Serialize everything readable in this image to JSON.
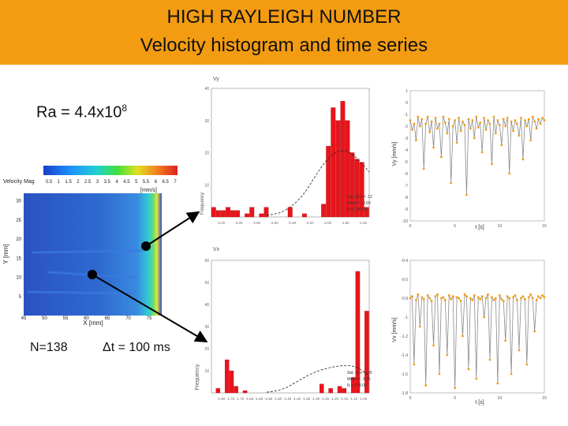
{
  "header": {
    "title_line1": "HIGH RAYLEIGH NUMBER",
    "title_line2": "Velocity histogram and time series"
  },
  "colors": {
    "banner": "#f39c12",
    "bar": "#e8141c",
    "series_marker": "#f39c12",
    "series_line": "#8a8a8a",
    "arrow": "#000000"
  },
  "labels": {
    "ra_text": "Ra = 4.4x10",
    "ra_exp": "8",
    "n_text": "N=138",
    "dt_text": "Δt = 100 ms"
  },
  "chart_data": [
    {
      "type": "heatmap",
      "name_key": "velocity-field",
      "colorbar_title": "Velocity Mag",
      "colorbar_ticks": [
        "0.5",
        "1",
        "1.5",
        "2",
        "2.5",
        "3",
        "3.5",
        "4",
        "4.5",
        "5",
        "5.5",
        "6",
        "6.5",
        "7"
      ],
      "colorbar_unit": "[mm/s]",
      "xlabel": "X [mm]",
      "ylabel": "Y [mm]",
      "xticks": [
        "45",
        "50",
        "55",
        "60",
        "65",
        "70",
        "75"
      ],
      "yticks": [
        "5",
        "10",
        "15",
        "20",
        "25",
        "30"
      ],
      "xlim": [
        45,
        78
      ],
      "ylim": [
        0,
        32
      ],
      "probes": [
        {
          "x": 73.5,
          "y": 14.2
        },
        {
          "x": 56.5,
          "y": 10.1
        }
      ]
    },
    {
      "type": "bar",
      "name_key": "histogram-vy",
      "title": "Vy",
      "ylabel": "Frequency",
      "ylim": [
        0,
        40
      ],
      "yticks": [
        "10",
        "20",
        "30",
        "40"
      ],
      "xticks": [
        "-3.20",
        "-3.00",
        "-2.80",
        "-2.60",
        "-2.40",
        "-2.20",
        "-2.00",
        "-1.80",
        "-1.60"
      ],
      "values": [
        3,
        2,
        2,
        3,
        2,
        2,
        0,
        1,
        3,
        0,
        1,
        3,
        0,
        0,
        0,
        0,
        3,
        0,
        0,
        1,
        0,
        0,
        0,
        4,
        22,
        34,
        30,
        36,
        30,
        20,
        18,
        17,
        3
      ],
      "fit_curve": [
        0.5,
        0.8,
        1.2,
        2,
        3.2,
        4.8,
        6.8,
        9.5,
        12.5,
        15.3,
        17.8,
        19.6,
        20.5,
        20.6,
        19.8,
        18.2,
        16.2,
        14
      ],
      "stats": [
        "Std. Dev = .12",
        "Mean = -3.69",
        "N = 138.00"
      ]
    },
    {
      "type": "line",
      "name_key": "timeseries-vy",
      "ylabel": "Vy [mm/s]",
      "xlabel": "t [s]",
      "xlim": [
        0,
        15
      ],
      "ylim": [
        -10,
        1
      ],
      "xticks": [
        "0",
        "5",
        "10",
        "15"
      ],
      "yticks": [
        "1",
        "0",
        "-1",
        "-2",
        "-3",
        "-4",
        "-5",
        "-6",
        "-7",
        "-8",
        "-9",
        "-10"
      ],
      "values": [
        -1.5,
        -2.3,
        -1.8,
        -3.2,
        -1.2,
        -2.0,
        -1.4,
        -5.6,
        -1.8,
        -1.2,
        -2.5,
        -1.6,
        -3.8,
        -1.3,
        -2.2,
        -1.8,
        -4.6,
        -1.2,
        -1.7,
        -2.6,
        -1.4,
        -6.8,
        -2.0,
        -1.5,
        -3.4,
        -1.3,
        -2.4,
        -1.6,
        -1.9,
        -7.8,
        -1.4,
        -2.2,
        -1.5,
        -3.0,
        -1.2,
        -2.1,
        -1.7,
        -4.2,
        -1.3,
        -2.3,
        -1.5,
        -1.8,
        -5.2,
        -1.2,
        -2.6,
        -1.5,
        -1.9,
        -3.6,
        -1.4,
        -2.0,
        -1.3,
        -6.0,
        -1.6,
        -2.4,
        -1.5,
        -1.8,
        -2.8,
        -1.3,
        -4.8,
        -1.5,
        -2.0,
        -1.4,
        -3.2,
        -1.2,
        -1.6,
        -2.2,
        -1.4,
        -1.8,
        -1.3,
        -1.5
      ]
    },
    {
      "type": "bar",
      "name_key": "histogram-vx",
      "title": "Vx",
      "ylabel": "Frequency",
      "ylim": [
        0,
        60
      ],
      "yticks": [
        "10",
        "20",
        "30",
        "40",
        "50",
        "60"
      ],
      "xticks": [
        "-1.80",
        "-1.75",
        "-1.70",
        "-1.65",
        "-1.60",
        "-1.55",
        "-1.50",
        "-1.45",
        "-1.40",
        "-1.35",
        "-1.30",
        "-1.25",
        "-1.20",
        "-1.15",
        "-1.10",
        "-1.05"
      ],
      "values": [
        0,
        2,
        0,
        15,
        10,
        3,
        0,
        1,
        0,
        0,
        0,
        0,
        0,
        0,
        0,
        0,
        0,
        0,
        0,
        0,
        0,
        0,
        0,
        0,
        4,
        0,
        2,
        0,
        3,
        2,
        0,
        7,
        55,
        0,
        37
      ],
      "fit_curve": [
        0.3,
        0.6,
        1,
        1.8,
        2.8,
        4.2,
        5.6,
        7,
        8.3,
        9.4,
        10.3,
        11,
        11.6,
        12,
        12.3,
        12.4,
        12.1,
        11.2,
        9.6,
        7.5
      ],
      "stats": [
        "Std. Dev = .05",
        "Mean = -1.05",
        "N = 138.00"
      ]
    },
    {
      "type": "line",
      "name_key": "timeseries-vx",
      "ylabel": "Vx [mm/s]",
      "xlabel": "t [s]",
      "xlim": [
        0,
        15
      ],
      "ylim": [
        -1.8,
        -0.4
      ],
      "xticks": [
        "0",
        "5",
        "10",
        "15"
      ],
      "yticks": [
        "-0.4",
        "-0.6",
        "-0.8",
        "-1",
        "-1.2",
        "-1.4",
        "-1.6",
        "-1.8"
      ],
      "values": [
        -0.8,
        -0.78,
        -1.5,
        -0.82,
        -0.76,
        -1.1,
        -0.79,
        -0.81,
        -1.72,
        -0.77,
        -0.8,
        -0.83,
        -1.3,
        -0.78,
        -0.76,
        -1.6,
        -0.8,
        -0.79,
        -0.82,
        -1.4,
        -0.77,
        -0.81,
        -0.78,
        -1.75,
        -0.79,
        -0.8,
        -0.83,
        -1.2,
        -0.76,
        -0.78,
        -1.55,
        -0.8,
        -0.82,
        -0.77,
        -1.65,
        -0.79,
        -0.81,
        -0.78,
        -1.0,
        -0.8,
        -0.76,
        -1.45,
        -0.79,
        -0.82,
        -0.8,
        -1.7,
        -0.77,
        -0.81,
        -0.83,
        -1.25,
        -0.78,
        -0.8,
        -1.6,
        -0.79,
        -0.77,
        -0.82,
        -1.35,
        -0.8,
        -0.78,
        -0.81,
        -1.5,
        -0.79,
        -0.76,
        -0.8,
        -1.15,
        -0.82,
        -0.78,
        -0.8,
        -0.77,
        -0.79
      ]
    }
  ]
}
